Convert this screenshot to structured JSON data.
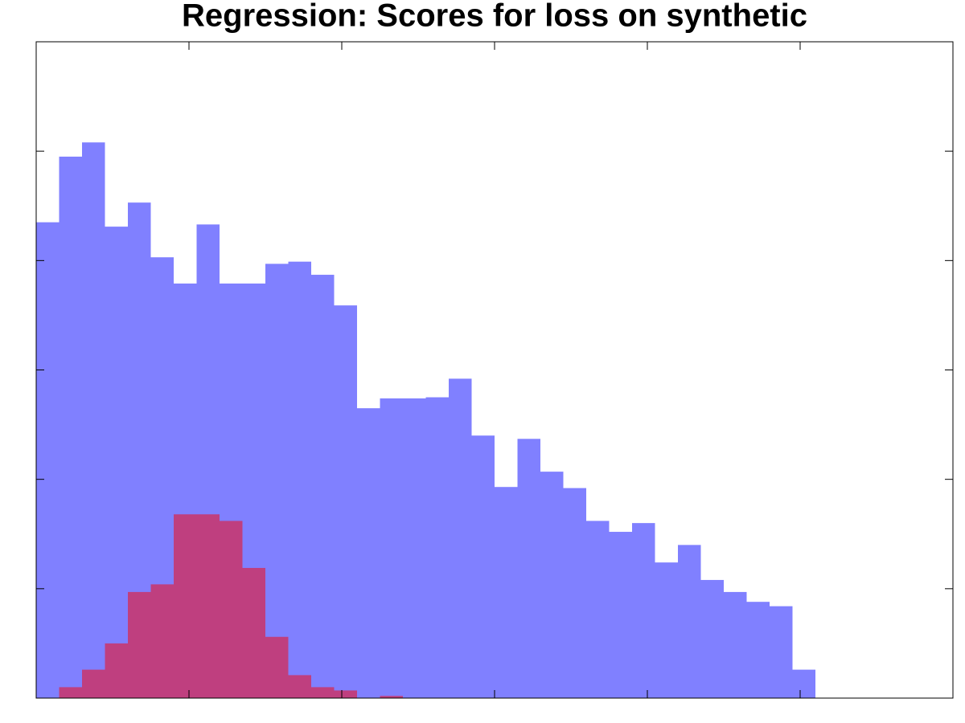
{
  "chart_data": {
    "type": "histogram",
    "title": "Regression: Scores for loss on synthetic",
    "bins": [
      0,
      0.15,
      0.3,
      0.45,
      0.6,
      0.75,
      0.9,
      1.05,
      1.2,
      1.35,
      1.5,
      1.65,
      1.8,
      1.95,
      2.1,
      2.25,
      2.4,
      2.55,
      2.7,
      2.85,
      3,
      3.15,
      3.3,
      3.45,
      3.6,
      3.75,
      3.9,
      4.05,
      4.2,
      4.35,
      4.5,
      4.65,
      4.8,
      4.95,
      5.1
    ],
    "series": [
      {
        "color": "#8080ff",
        "values": [
          4.35,
          4.95,
          5.08,
          4.31,
          4.53,
          4.03,
          3.79,
          4.33,
          3.79,
          3.79,
          3.97,
          3.99,
          3.87,
          3.59,
          2.65,
          2.74,
          2.74,
          2.75,
          2.92,
          2.4,
          1.93,
          2.37,
          2.07,
          1.92,
          1.62,
          1.52,
          1.6,
          1.24,
          1.4,
          1.08,
          0.97,
          0.88,
          0.84,
          0.26
        ]
      },
      {
        "color": "#bf3f7f",
        "values": [
          0,
          0.1,
          0.26,
          0.5,
          0.97,
          1.04,
          1.68,
          1.68,
          1.62,
          1.19,
          0.56,
          0.21,
          0.1,
          0.07,
          0,
          0.02,
          0,
          0,
          0,
          0,
          0,
          0,
          0,
          0,
          0,
          0,
          0,
          0,
          0,
          0,
          0,
          0,
          0,
          0
        ]
      }
    ],
    "xlim": [
      0,
      6
    ],
    "xticks": [
      1,
      2,
      3,
      4,
      5
    ],
    "ylim": [
      0,
      6
    ],
    "yticks": [
      1,
      2,
      3,
      4,
      5
    ]
  }
}
